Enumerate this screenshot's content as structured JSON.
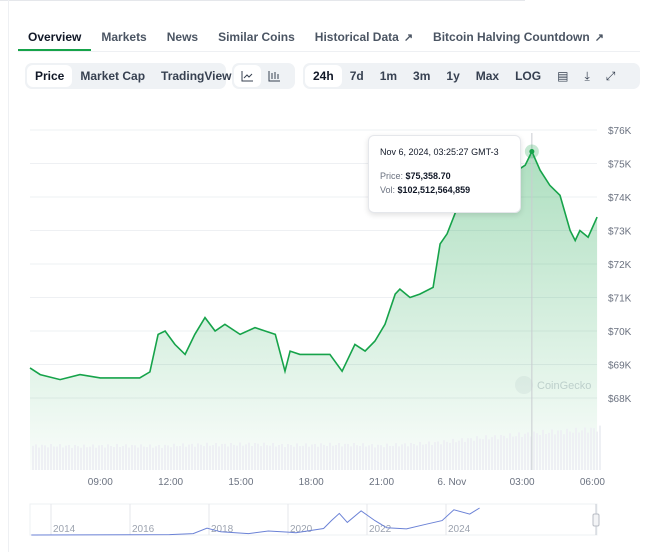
{
  "tabs": [
    {
      "label": "Overview",
      "active": true
    },
    {
      "label": "Markets"
    },
    {
      "label": "News"
    },
    {
      "label": "Similar Coins"
    },
    {
      "label": "Historical Data",
      "external": true
    },
    {
      "label": "Bitcoin Halving Countdown",
      "external": true
    }
  ],
  "toolbar": {
    "views": [
      "Price",
      "Market Cap",
      "TradingView"
    ],
    "active_view": "Price",
    "chart_types": [
      {
        "icon": "line-chart-icon"
      },
      {
        "icon": "candlestick-chart-icon"
      }
    ],
    "ranges": [
      "24h",
      "7d",
      "1m",
      "3m",
      "1y",
      "Max",
      "LOG"
    ],
    "active_range": "24h",
    "tools": [
      {
        "icon": "calendar-icon"
      },
      {
        "icon": "download-icon"
      },
      {
        "icon": "expand-icon"
      }
    ]
  },
  "tooltip": {
    "date": "Nov 6, 2024, 03:25:27 GMT-3",
    "price_label": "Price:",
    "price": "$75,358.70",
    "vol_label": "Vol:",
    "vol": "$102,512,564,859"
  },
  "watermark": "CoinGecko",
  "colors": {
    "line": "#16a34a",
    "accent": "#16a34a",
    "navigator": "#6b82d6"
  },
  "chart_data": {
    "type": "area",
    "ylim": [
      68000,
      76000
    ],
    "y_ticks": [
      "$76K",
      "$75K",
      "$74K",
      "$73K",
      "$72K",
      "$71K",
      "$70K",
      "$69K",
      "$68K"
    ],
    "x_ticks": [
      "09:00",
      "12:00",
      "15:00",
      "18:00",
      "21:00",
      "6. Nov",
      "03:00",
      "06:00"
    ],
    "grid": true,
    "series": [
      {
        "x": [
          "11-05 06:00",
          "11-05 06:26",
          "11-05 07:17",
          "11-05 08:08",
          "11-05 09:00",
          "11-05 09:50",
          "11-05 10:41",
          "11-05 11:07",
          "11-05 11:28",
          "11-05 11:46",
          "11-05 12:11",
          "11-05 12:37",
          "11-05 13:02",
          "11-05 13:28",
          "11-05 13:54",
          "11-05 14:19",
          "11-05 14:58",
          "11-05 15:36",
          "11-05 16:02",
          "11-05 16:28",
          "11-05 16:53",
          "11-05 17:06",
          "11-05 17:31",
          "11-05 18:10",
          "11-05 18:48",
          "11-05 19:19",
          "11-05 19:52",
          "11-05 20:18",
          "11-05 20:43",
          "11-05 21:09",
          "11-05 21:35",
          "11-05 21:47",
          "11-05 22:13",
          "11-05 22:38",
          "11-05 23:12",
          "11-05 23:30",
          "11-05 23:48",
          "11-06 00:08",
          "11-06 00:34",
          "11-06 01:07",
          "11-06 01:38",
          "11-06 02:29",
          "11-06 03:08",
          "11-06 03:25",
          "11-06 03:46",
          "11-06 04:11",
          "11-06 04:37",
          "11-06 05:03",
          "11-06 05:16",
          "11-06 05:28",
          "11-06 05:49",
          "11-06 06:12"
        ],
        "y": [
          68900,
          68700,
          68550,
          68700,
          68600,
          68600,
          68600,
          68780,
          69900,
          70000,
          69600,
          69300,
          69900,
          70400,
          70000,
          70200,
          69900,
          70100,
          70000,
          69900,
          68800,
          69400,
          69300,
          69300,
          69300,
          68800,
          69600,
          69400,
          69700,
          70200,
          71100,
          71250,
          71000,
          71100,
          71300,
          72600,
          72900,
          73500,
          74200,
          74650,
          74800,
          74650,
          74950,
          75358.7,
          74800,
          74350,
          74050,
          73000,
          72700,
          73000,
          72800,
          73400
        ]
      }
    ],
    "volume_relative": [
      0.42,
      0.42,
      0.41,
      0.42,
      0.42,
      0.41,
      0.43,
      0.44,
      0.44,
      0.45,
      0.43,
      0.43,
      0.44,
      0.44,
      0.42,
      0.44,
      0.46,
      0.5,
      0.55,
      0.58,
      0.62,
      0.66,
      0.68,
      0.72
    ],
    "highlight": {
      "x": "11-06 03:25",
      "y": 75358.7
    },
    "navigator": {
      "x_ticks": [
        "2014",
        "2016",
        "2018",
        "2020",
        "2022",
        "2024"
      ],
      "x": [
        2013.5,
        2017.0,
        2017.6,
        2017.95,
        2018.3,
        2019.0,
        2019.5,
        2020.0,
        2020.2,
        2020.9,
        2021.1,
        2021.3,
        2021.5,
        2021.85,
        2022.2,
        2022.5,
        2023.0,
        2023.5,
        2023.9,
        2024.2,
        2024.6,
        2024.85
      ],
      "y": [
        100,
        1000,
        4000,
        19000,
        9000,
        4000,
        11000,
        8000,
        6000,
        18000,
        40000,
        60000,
        35000,
        67000,
        40000,
        20000,
        17000,
        30000,
        40000,
        70000,
        58000,
        75000
      ]
    }
  }
}
